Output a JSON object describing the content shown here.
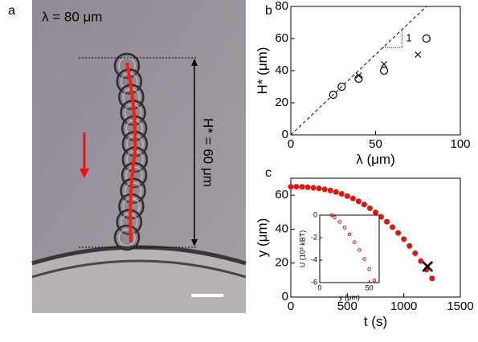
{
  "panel_labels": [
    "a",
    "b",
    "c"
  ],
  "image": {
    "wavelength_label": "λ = 80 μm",
    "height_label": "H* = 60 μm"
  },
  "chart_data": [
    {
      "type": "scatter",
      "xlabel": "λ (μm)",
      "ylabel": "H* (μm)",
      "xlim": [
        0,
        100
      ],
      "ylim": [
        0,
        80
      ],
      "xticks": [
        0,
        50,
        100
      ],
      "yticks": [
        0,
        20,
        40,
        60,
        80
      ],
      "reference_slope": 1,
      "series": [
        {
          "marker": "circle",
          "color": "#000000",
          "x": [
            25,
            30,
            40,
            55,
            80
          ],
          "values": [
            25,
            30,
            35,
            40,
            60
          ]
        },
        {
          "marker": "cross",
          "color": "#000000",
          "x": [
            40,
            55,
            75
          ],
          "values": [
            37,
            44,
            50
          ]
        }
      ]
    },
    {
      "type": "scatter",
      "xlabel": "t (s)",
      "ylabel": "y (μm)",
      "xlim": [
        0,
        1500
      ],
      "ylim": [
        0,
        70
      ],
      "xticks": [
        0,
        500,
        1000,
        1500
      ],
      "yticks": [
        0,
        20,
        40,
        60
      ],
      "series": [
        {
          "marker": "dot",
          "color": "#e8120c",
          "x": [
            0,
            50,
            100,
            150,
            200,
            250,
            300,
            350,
            400,
            450,
            500,
            550,
            600,
            650,
            700,
            750,
            800,
            850,
            900,
            950,
            1000,
            1050,
            1100,
            1150,
            1200,
            1250
          ],
          "values": [
            65,
            65.0,
            64.9,
            64.7,
            64.4,
            64.0,
            63.5,
            62.8,
            61.9,
            60.8,
            59.5,
            58.1,
            56.4,
            54.5,
            52.3,
            49.9,
            47.3,
            44.4,
            41.2,
            37.8,
            34.1,
            30.1,
            25.8,
            21.2,
            16.2,
            11.0
          ]
        },
        {
          "marker": "bigx",
          "color": "#000000",
          "x": [
            1210
          ],
          "values": [
            18
          ]
        }
      ]
    },
    {
      "type": "scatter",
      "xlabel": "y (μm)",
      "ylabel": "U (10³ kBT)",
      "xlim": [
        0,
        60
      ],
      "ylim": [
        -6,
        0
      ],
      "xticks": [
        0,
        50
      ],
      "yticks": [
        0,
        -2,
        -4,
        -6
      ],
      "series": [
        {
          "marker": "ring",
          "color": "#e8120c",
          "x": [
            12,
            15,
            20,
            25,
            30,
            35,
            40,
            45,
            50,
            55
          ],
          "values": [
            0,
            -0.2,
            -0.6,
            -1.1,
            -1.7,
            -2.4,
            -3.1,
            -3.9,
            -4.8,
            -5.8
          ]
        }
      ]
    }
  ]
}
